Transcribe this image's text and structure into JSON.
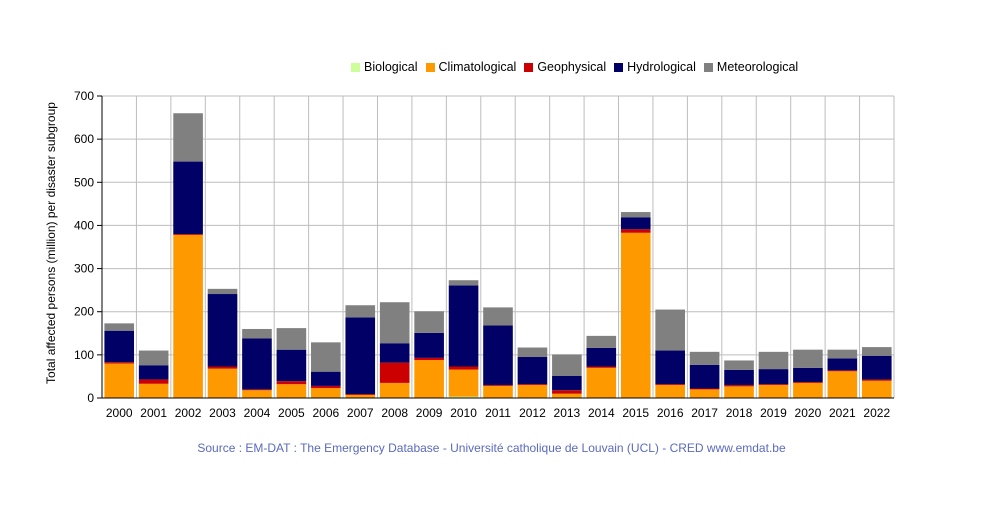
{
  "chart_data": {
    "type": "bar",
    "stacked": true,
    "categories": [
      "2000",
      "2001",
      "2002",
      "2003",
      "2004",
      "2005",
      "2006",
      "2007",
      "2008",
      "2009",
      "2010",
      "2011",
      "2012",
      "2013",
      "2014",
      "2015",
      "2016",
      "2017",
      "2018",
      "2019",
      "2020",
      "2021",
      "2022"
    ],
    "series": [
      {
        "name": "Biological",
        "color": "#ccff99",
        "values": [
          0,
          0,
          0,
          0,
          0,
          0,
          0,
          0,
          0,
          0,
          3,
          0,
          0,
          0,
          0,
          0,
          0,
          0,
          0,
          0,
          0,
          0,
          0
        ]
      },
      {
        "name": "Climatological",
        "color": "#ff9900",
        "values": [
          80,
          33,
          378,
          68,
          18,
          32,
          23,
          7,
          35,
          88,
          63,
          28,
          30,
          10,
          70,
          383,
          30,
          20,
          27,
          30,
          35,
          62,
          40
        ]
      },
      {
        "name": "Geophysical",
        "color": "#cc0000",
        "values": [
          3,
          10,
          2,
          5,
          2,
          7,
          5,
          2,
          47,
          5,
          7,
          2,
          2,
          8,
          3,
          8,
          2,
          2,
          3,
          2,
          2,
          2,
          3
        ]
      },
      {
        "name": "Hydrological",
        "color": "#000066",
        "values": [
          73,
          33,
          168,
          168,
          118,
          73,
          33,
          178,
          45,
          58,
          188,
          138,
          63,
          33,
          43,
          28,
          78,
          55,
          35,
          35,
          33,
          28,
          55
        ]
      },
      {
        "name": "Meteorological",
        "color": "#808080",
        "values": [
          17,
          34,
          112,
          12,
          22,
          50,
          68,
          28,
          95,
          50,
          12,
          42,
          22,
          50,
          28,
          12,
          95,
          30,
          22,
          40,
          42,
          20,
          20
        ]
      }
    ],
    "ylabel": "Total affected persons (million) per disaster subgroup",
    "xlabel": "",
    "ylim": [
      0,
      700
    ],
    "yticks": [
      0,
      100,
      200,
      300,
      400,
      500,
      600,
      700
    ],
    "grid": true,
    "legend_position": "top"
  },
  "source_text": "Source : EM-DAT : The Emergency Database - Université catholique de Louvain (UCL) - CRED  www.emdat.be"
}
